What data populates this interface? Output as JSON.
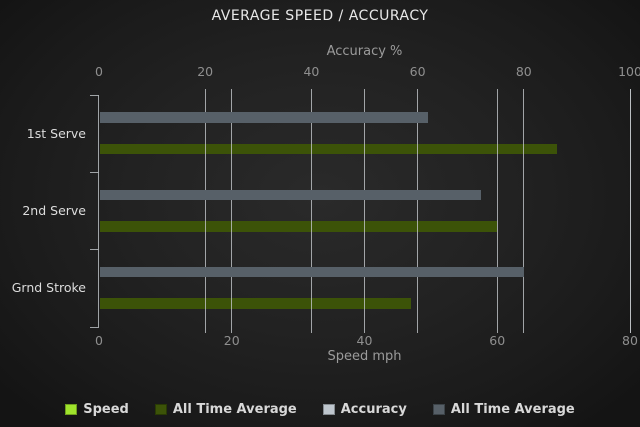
{
  "chart_data": {
    "type": "bar",
    "orientation": "horizontal",
    "title": "AVERAGE SPEED / ACCURACY",
    "categories": [
      "1st Serve",
      "2nd Serve",
      "Grnd Stroke"
    ],
    "axes": {
      "top": {
        "label": "Accuracy %",
        "min": 0,
        "max": 100,
        "ticks": [
          0,
          20,
          40,
          60,
          80,
          100
        ]
      },
      "bottom": {
        "label": "Speed mph",
        "min": 0,
        "max": 80,
        "ticks": [
          0,
          20,
          40,
          60,
          80
        ]
      }
    },
    "series": [
      {
        "name": "Speed",
        "axis": "bottom",
        "color": "#9fe32c",
        "values": [
          0,
          0,
          0
        ]
      },
      {
        "name": "All Time Average",
        "axis": "bottom",
        "color": "#3c5308",
        "values": [
          69,
          60,
          47
        ]
      },
      {
        "name": "Accuracy",
        "axis": "top",
        "color": "#bec6cd",
        "values": [
          0,
          0,
          0
        ]
      },
      {
        "name": "All Time Average",
        "axis": "top",
        "color": "#576068",
        "values": [
          62,
          72,
          80
        ]
      }
    ],
    "legend_position": "bottom",
    "grid": true,
    "colors": {
      "background": "#1f1f1f",
      "gridline": "#c2c6c9",
      "title_text": "#e8e8e8",
      "axis_text": "#9b9b9b",
      "tick_text": "#8f8f8f",
      "category_text": "#dcdcdc",
      "legend_text": "#d8d8d8"
    }
  }
}
